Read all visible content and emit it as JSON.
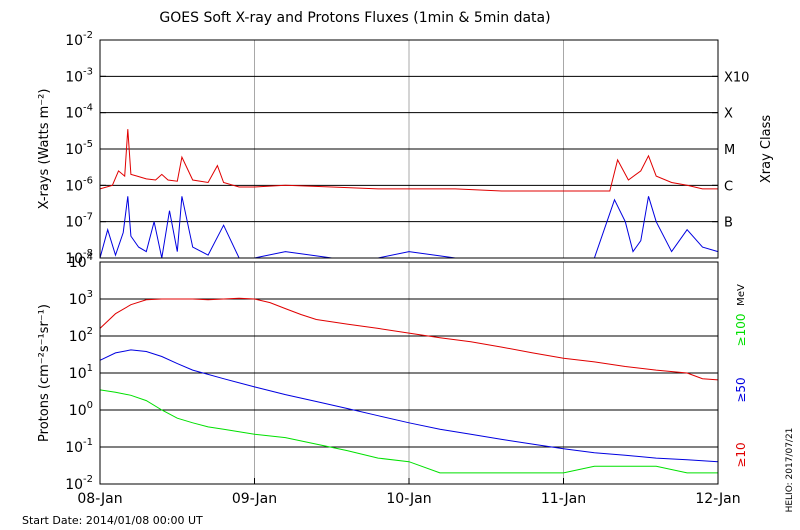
{
  "chart_data": [
    {
      "type": "line",
      "panel": "xrays",
      "title": "GOES Soft X-ray and Protons Fluxes   (1min & 5min data)",
      "ylabel": "X-rays (Watts m⁻²)",
      "yscale": "log",
      "ylim": [
        1e-08,
        0.01
      ],
      "yticks": [
        {
          "value": 1e-08,
          "base": "10",
          "exp": "-8"
        },
        {
          "value": 1e-07,
          "base": "10",
          "exp": "-7"
        },
        {
          "value": 1e-06,
          "base": "10",
          "exp": "-6"
        },
        {
          "value": 1e-05,
          "base": "10",
          "exp": "-5"
        },
        {
          "value": 0.0001,
          "base": "10",
          "exp": "-4"
        },
        {
          "value": 0.001,
          "base": "10",
          "exp": "-3"
        },
        {
          "value": 0.01,
          "base": "10",
          "exp": "-2"
        }
      ],
      "right_axis_label": "Xray Class",
      "classes": [
        {
          "label": "B",
          "value": 1e-07
        },
        {
          "label": "C",
          "value": 1e-06
        },
        {
          "label": "M",
          "value": 1e-05
        },
        {
          "label": "X",
          "value": 0.0001
        },
        {
          "label": "X10",
          "value": 0.001
        }
      ],
      "grid": true,
      "series": [
        {
          "name": "",
          "color": "#e00000",
          "x": [
            0.0,
            0.08,
            0.12,
            0.16,
            0.18,
            0.2,
            0.24,
            0.3,
            0.36,
            0.4,
            0.44,
            0.5,
            0.53,
            0.6,
            0.7,
            0.76,
            0.8,
            0.9,
            1.0,
            1.2,
            1.5,
            1.8,
            2.0,
            2.3,
            2.6,
            2.9,
            3.0,
            3.3,
            3.35,
            3.42,
            3.5,
            3.55,
            3.6,
            3.7,
            3.8,
            3.9,
            4.0
          ],
          "y": [
            8e-07,
            1e-06,
            2.5e-06,
            1.8e-06,
            3.5e-05,
            2e-06,
            1.8e-06,
            1.5e-06,
            1.4e-06,
            2e-06,
            1.4e-06,
            1.3e-06,
            6e-06,
            1.4e-06,
            1.2e-06,
            3.5e-06,
            1.2e-06,
            9e-07,
            9e-07,
            1e-06,
            9e-07,
            8e-07,
            8e-07,
            8e-07,
            7e-07,
            7e-07,
            7e-07,
            7e-07,
            5e-06,
            1.4e-06,
            2.5e-06,
            6.5e-06,
            1.8e-06,
            1.2e-06,
            1e-06,
            8e-07,
            8e-07
          ]
        },
        {
          "name": "",
          "color": "#0000e0",
          "x": [
            0.0,
            0.05,
            0.1,
            0.15,
            0.18,
            0.2,
            0.25,
            0.3,
            0.35,
            0.4,
            0.45,
            0.5,
            0.53,
            0.6,
            0.7,
            0.8,
            0.9,
            1.0,
            1.2,
            1.5,
            1.8,
            2.0,
            2.3,
            2.6,
            2.9,
            3.0,
            3.2,
            3.33,
            3.4,
            3.45,
            3.5,
            3.55,
            3.6,
            3.7,
            3.8,
            3.9,
            4.0
          ],
          "y": [
            1e-08,
            6e-08,
            1.2e-08,
            5e-08,
            5e-07,
            4e-08,
            2e-08,
            1.5e-08,
            1e-07,
            1e-08,
            2e-07,
            1.5e-08,
            5e-07,
            2e-08,
            1.2e-08,
            8e-08,
            1e-08,
            1e-08,
            1.5e-08,
            1e-08,
            1e-08,
            1.5e-08,
            1e-08,
            1e-08,
            1e-08,
            1e-08,
            1e-08,
            4e-07,
            1e-07,
            1.5e-08,
            3e-08,
            5e-07,
            1e-07,
            1.5e-08,
            6e-08,
            2e-08,
            1.5e-08
          ]
        }
      ]
    },
    {
      "type": "line",
      "panel": "protons",
      "ylabel": "Protons (cm⁻²s⁻¹sr⁻¹)",
      "yscale": "log",
      "ylim": [
        0.01,
        10000
      ],
      "yticks": [
        {
          "value": 0.01,
          "base": "10",
          "exp": "-2"
        },
        {
          "value": 0.1,
          "base": "10",
          "exp": "-1"
        },
        {
          "value": 1,
          "base": "10",
          "exp": "0"
        },
        {
          "value": 10,
          "base": "10",
          "exp": "1"
        },
        {
          "value": 100,
          "base": "10",
          "exp": "2"
        },
        {
          "value": 1000,
          "base": "10",
          "exp": "3"
        },
        {
          "value": 10000,
          "base": "10",
          "exp": "4"
        }
      ],
      "dashed_line": 10,
      "right_units": "MeV",
      "grid": true,
      "series": [
        {
          "name": "≥10",
          "color": "#e00000",
          "x": [
            0.0,
            0.1,
            0.2,
            0.3,
            0.4,
            0.5,
            0.6,
            0.7,
            0.8,
            0.9,
            1.0,
            1.1,
            1.2,
            1.3,
            1.4,
            1.6,
            1.8,
            2.0,
            2.2,
            2.4,
            2.6,
            2.8,
            3.0,
            3.2,
            3.4,
            3.6,
            3.8,
            3.9,
            4.0
          ],
          "y": [
            160,
            400,
            700,
            950,
            1000,
            1000,
            1000,
            950,
            1000,
            1050,
            1000,
            800,
            550,
            380,
            280,
            210,
            160,
            120,
            90,
            70,
            50,
            35,
            25,
            20,
            15,
            12,
            10,
            7,
            6.5
          ]
        },
        {
          "name": "≥50",
          "color": "#0000e0",
          "x": [
            0.0,
            0.1,
            0.2,
            0.3,
            0.4,
            0.5,
            0.6,
            0.8,
            1.0,
            1.2,
            1.4,
            1.6,
            1.8,
            2.0,
            2.2,
            2.4,
            2.6,
            2.8,
            3.0,
            3.2,
            3.4,
            3.6,
            3.8,
            4.0
          ],
          "y": [
            22,
            35,
            42,
            38,
            28,
            18,
            12,
            7,
            4.2,
            2.6,
            1.7,
            1.1,
            0.7,
            0.45,
            0.3,
            0.22,
            0.16,
            0.12,
            0.09,
            0.07,
            0.06,
            0.05,
            0.045,
            0.04
          ]
        },
        {
          "name": "≥100",
          "color": "#00e000",
          "x": [
            0.0,
            0.1,
            0.2,
            0.3,
            0.4,
            0.5,
            0.6,
            0.7,
            0.8,
            1.0,
            1.2,
            1.4,
            1.6,
            1.8,
            2.0,
            2.2,
            2.4,
            2.6,
            2.8,
            3.0,
            3.2,
            3.4,
            3.6,
            3.8,
            4.0
          ],
          "y": [
            3.5,
            3.0,
            2.5,
            1.8,
            1.0,
            0.6,
            0.45,
            0.35,
            0.3,
            0.22,
            0.18,
            0.12,
            0.08,
            0.05,
            0.04,
            0.02,
            0.02,
            0.02,
            0.02,
            0.02,
            0.03,
            0.03,
            0.03,
            0.02,
            0.02
          ]
        }
      ]
    }
  ],
  "x_axis": {
    "ticks": [
      {
        "label": "08-Jan",
        "day": 0
      },
      {
        "label": "09-Jan",
        "day": 1
      },
      {
        "label": "10-Jan",
        "day": 2
      },
      {
        "label": "11-Jan",
        "day": 3
      },
      {
        "label": "12-Jan",
        "day": 4
      }
    ]
  },
  "footer": {
    "start_date": "Start Date: 2014/01/08 00:00 UT",
    "credit": "HELIO: 2017/07/21"
  }
}
